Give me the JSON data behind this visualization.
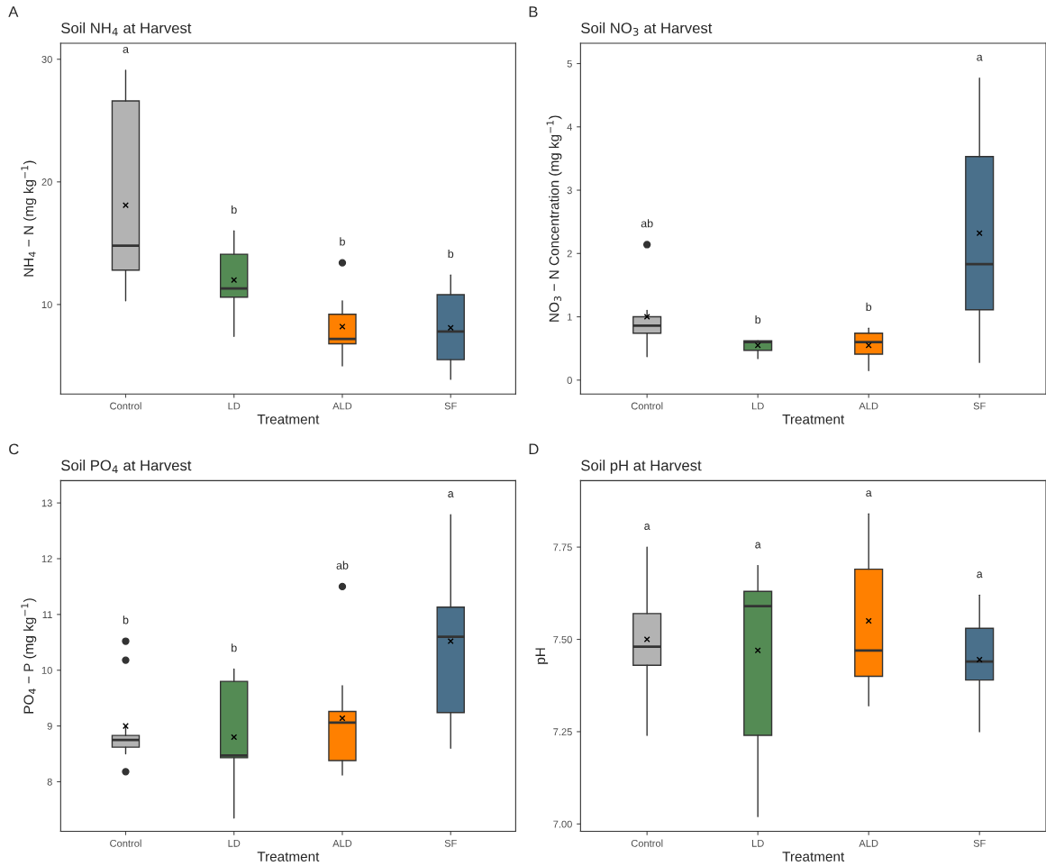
{
  "chart_data": [
    {
      "type": "box",
      "title": "Soil NH$_{4}$ at Harvest",
      "xlabel": "Treatment",
      "ylabel": "NH$_{4}$ − N (mg kg$^{−1}$)",
      "categories": [
        "Control",
        "LD",
        "ALD",
        "SF"
      ],
      "colors": [
        "#b3b3b3",
        "#548b54",
        "#ff8000",
        "#4a708b"
      ],
      "boxes": [
        {
          "low": 10.3,
          "q1": 12.8,
          "median": 14.8,
          "q3": 26.6,
          "high": 29.1,
          "mean": 18.1
        },
        {
          "low": 7.4,
          "q1": 10.6,
          "median": 11.3,
          "q3": 14.1,
          "high": 16.0,
          "mean": 12.0
        },
        {
          "low": 5.0,
          "q1": 6.8,
          "median": 7.2,
          "q3": 9.2,
          "high": 10.3,
          "mean": 8.2,
          "outliers": [
            13.4
          ]
        },
        {
          "low": 3.9,
          "q1": 5.5,
          "median": 7.8,
          "q3": 10.8,
          "high": 12.4,
          "mean": 8.1
        }
      ],
      "ylim": [
        2.7,
        31.3
      ],
      "yticks": [
        10,
        20,
        30
      ],
      "grid": false,
      "annotations": [
        "A",
        "a",
        "b",
        "b",
        "b"
      ]
    },
    {
      "type": "box",
      "title": "Soil NO$_{3}$ at Harvest",
      "xlabel": "Treatment",
      "ylabel": "NO$_{3}$ − N Concentration (mg kg$^{−1}$)",
      "categories": [
        "Control",
        "LD",
        "ALD",
        "SF"
      ],
      "colors": [
        "#b3b3b3",
        "#548b54",
        "#ff8000",
        "#4a708b"
      ],
      "boxes": [
        {
          "low": 0.37,
          "q1": 0.74,
          "median": 0.86,
          "q3": 1.0,
          "high": 1.1,
          "mean": 1.0,
          "outliers": [
            2.14
          ]
        },
        {
          "low": 0.34,
          "q1": 0.47,
          "median": 0.6,
          "q3": 0.62,
          "high": 0.62,
          "mean": 0.55
        },
        {
          "low": 0.15,
          "q1": 0.41,
          "median": 0.6,
          "q3": 0.74,
          "high": 0.82,
          "mean": 0.55
        },
        {
          "low": 0.28,
          "q1": 1.11,
          "median": 1.83,
          "q3": 3.53,
          "high": 4.77,
          "mean": 2.32
        }
      ],
      "ylim": [
        -0.22,
        5.32
      ],
      "yticks": [
        0,
        1,
        2,
        3,
        4,
        5
      ],
      "grid": false,
      "annotations": [
        "B",
        "ab",
        "b",
        "b",
        "a"
      ]
    },
    {
      "type": "box",
      "title": "Soil PO$_{4}$ at Harvest",
      "xlabel": "Treatment",
      "ylabel": "PO$_{4}$ − P (mg kg$^{−1}$)",
      "categories": [
        "Control",
        "LD",
        "ALD",
        "SF"
      ],
      "colors": [
        "#b3b3b3",
        "#548b54",
        "#ff8000",
        "#4a708b"
      ],
      "boxes": [
        {
          "low": 8.5,
          "q1": 8.62,
          "median": 8.75,
          "q3": 8.83,
          "high": 9.0,
          "mean": 9.0,
          "outliers": [
            10.52,
            10.18,
            8.18
          ]
        },
        {
          "low": 7.35,
          "q1": 8.43,
          "median": 8.47,
          "q3": 9.8,
          "high": 10.02,
          "mean": 8.8
        },
        {
          "low": 8.12,
          "q1": 8.38,
          "median": 9.06,
          "q3": 9.26,
          "high": 9.72,
          "mean": 9.14,
          "outliers": [
            11.5
          ]
        },
        {
          "low": 8.6,
          "q1": 9.24,
          "median": 10.6,
          "q3": 11.13,
          "high": 12.79,
          "mean": 10.52
        }
      ],
      "ylim": [
        7.11,
        13.4
      ],
      "yticks": [
        8,
        9,
        10,
        11,
        12,
        13
      ],
      "grid": false,
      "annotations": [
        "C",
        "b",
        "b",
        "ab",
        "a"
      ]
    },
    {
      "type": "box",
      "title": "Soil pH at Harvest",
      "xlabel": "Treatment",
      "ylabel": "pH",
      "categories": [
        "Control",
        "LD",
        "ALD",
        "SF"
      ],
      "colors": [
        "#b3b3b3",
        "#548b54",
        "#ff8000",
        "#4a708b"
      ],
      "boxes": [
        {
          "low": 7.24,
          "q1": 7.43,
          "median": 7.48,
          "q3": 7.57,
          "high": 7.75,
          "mean": 7.5
        },
        {
          "low": 7.02,
          "q1": 7.24,
          "median": 7.59,
          "q3": 7.63,
          "high": 7.7,
          "mean": 7.47
        },
        {
          "low": 7.32,
          "q1": 7.4,
          "median": 7.47,
          "q3": 7.69,
          "high": 7.84,
          "mean": 7.55
        },
        {
          "low": 7.25,
          "q1": 7.39,
          "median": 7.44,
          "q3": 7.53,
          "high": 7.62,
          "mean": 7.445
        }
      ],
      "ylim": [
        6.98,
        7.93
      ],
      "yticks": [
        {
          "value": 7.0,
          "label": "7.00"
        },
        {
          "value": 7.25,
          "label": "7.25"
        },
        {
          "value": 7.5,
          "label": "7.50"
        },
        {
          "value": 7.75,
          "label": "7.75"
        }
      ],
      "grid": false,
      "annotations": [
        "D",
        "a",
        "a",
        "a",
        "a"
      ]
    }
  ]
}
